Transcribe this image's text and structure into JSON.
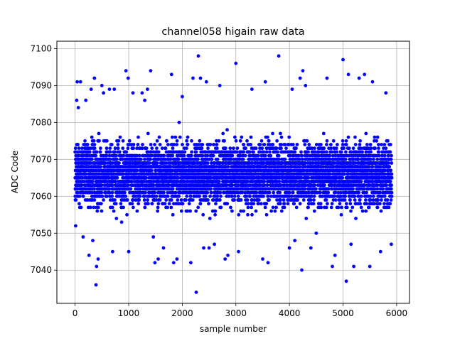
{
  "chart_data": {
    "type": "scatter",
    "title": "channel058 higain raw data",
    "xlabel": "sample number",
    "ylabel": "ADC Code",
    "xlim": [
      -340,
      6240
    ],
    "ylim": [
      7031,
      7102
    ],
    "x_ticks": [
      0,
      1000,
      2000,
      3000,
      4000,
      5000,
      6000
    ],
    "y_ticks": [
      7040,
      7050,
      7060,
      7070,
      7080,
      7090,
      7100
    ],
    "grid": true,
    "marker_color": "#0000ff",
    "legend": "none",
    "series": [
      {
        "x_range": [
          0,
          5910
        ],
        "count": 5910,
        "bulk_range": [
          7050,
          7085
        ],
        "center": 7066,
        "points": [
          [
            30,
            7086
          ],
          [
            40,
            7091
          ],
          [
            60,
            7084
          ],
          [
            100,
            7091
          ],
          [
            150,
            7049
          ],
          [
            200,
            7086
          ],
          [
            260,
            7044
          ],
          [
            300,
            7089
          ],
          [
            330,
            7048
          ],
          [
            360,
            7092
          ],
          [
            390,
            7036
          ],
          [
            400,
            7041
          ],
          [
            430,
            7043
          ],
          [
            500,
            7090
          ],
          [
            530,
            7088
          ],
          [
            640,
            7089
          ],
          [
            700,
            7045
          ],
          [
            730,
            7089
          ],
          [
            950,
            7094
          ],
          [
            990,
            7092
          ],
          [
            1000,
            7045
          ],
          [
            1080,
            7088
          ],
          [
            1250,
            7088
          ],
          [
            1300,
            7086
          ],
          [
            1350,
            7089
          ],
          [
            1410,
            7094
          ],
          [
            1460,
            7049
          ],
          [
            1490,
            7042
          ],
          [
            1550,
            7043
          ],
          [
            1650,
            7046
          ],
          [
            1800,
            7093
          ],
          [
            1840,
            7042
          ],
          [
            1900,
            7043
          ],
          [
            2000,
            7087
          ],
          [
            2160,
            7042
          ],
          [
            2200,
            7092
          ],
          [
            2260,
            7034
          ],
          [
            2300,
            7098
          ],
          [
            2340,
            7092
          ],
          [
            2400,
            7046
          ],
          [
            2450,
            7091
          ],
          [
            2500,
            7046
          ],
          [
            2600,
            7047
          ],
          [
            2700,
            7090
          ],
          [
            2800,
            7043
          ],
          [
            2850,
            7044
          ],
          [
            3000,
            7096
          ],
          [
            3050,
            7045
          ],
          [
            3300,
            7089
          ],
          [
            3500,
            7043
          ],
          [
            3550,
            7091
          ],
          [
            3600,
            7042
          ],
          [
            3800,
            7098
          ],
          [
            4000,
            7046
          ],
          [
            4050,
            7089
          ],
          [
            4100,
            7048
          ],
          [
            4200,
            7092
          ],
          [
            4230,
            7040
          ],
          [
            4250,
            7094
          ],
          [
            4300,
            7090
          ],
          [
            4400,
            7046
          ],
          [
            4500,
            7050
          ],
          [
            4700,
            7092
          ],
          [
            4800,
            7041
          ],
          [
            4850,
            7044
          ],
          [
            5000,
            7097
          ],
          [
            5060,
            7037
          ],
          [
            5100,
            7093
          ],
          [
            5150,
            7047
          ],
          [
            5200,
            7041
          ],
          [
            5300,
            7092
          ],
          [
            5400,
            7093
          ],
          [
            5500,
            7041
          ],
          [
            5550,
            7091
          ],
          [
            5700,
            7045
          ],
          [
            5800,
            7088
          ],
          [
            5900,
            7047
          ]
        ]
      }
    ]
  }
}
